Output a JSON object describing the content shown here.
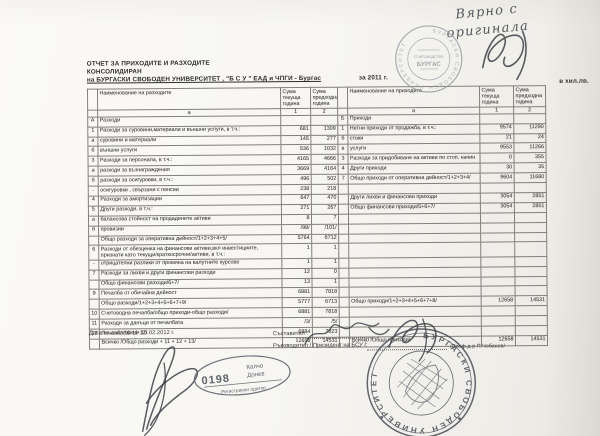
{
  "page": {
    "handwriting_line1": "Вярно с",
    "handwriting_line2": "оригинала",
    "title_line1": "ОТЧЕТ ЗА ПРИХОДИТЕ И РАЗХОДИТЕ",
    "title_line2": "КОНСОЛИДИРАН",
    "title_line3": "на БУРГАСКИ СВОБОДЕН УНИВЕРСИТЕТ , \"Б С У \" ЕАД и ЧПГИ - Бургас",
    "year_label": "за 2011 г.",
    "unit_label": "в хил.лв."
  },
  "table": {
    "header": {
      "left_name": "Наименование на разходите",
      "right_name": "Наименование на приходите",
      "sum_cur": "Сума текуща година",
      "sum_prev": "Сума предходна година",
      "col_a": "а",
      "col_1": "1",
      "col_2": "2"
    },
    "rows": [
      {
        "l": [
          "А",
          "Разходи",
          "",
          ""
        ],
        "r": [
          "Б",
          "Приходи",
          "",
          ""
        ]
      },
      {
        "l": [
          "1",
          "Разходи за суровини,материали и външни услуги, в т.ч.:",
          "681",
          "1309"
        ],
        "r": [
          "1",
          "Нетни приходи от продажба, в т.ч.:",
          "9574",
          "11290"
        ]
      },
      {
        "l": [
          "а",
          "суровини и  материали",
          "145",
          "277"
        ],
        "r": [
          "б",
          "стоки",
          "21",
          "24"
        ]
      },
      {
        "l": [
          "б",
          "външни услуги",
          "536",
          "1032"
        ],
        "r": [
          "в",
          "услуги",
          "9553",
          "11266"
        ]
      },
      {
        "l": [
          "3",
          "Разходи за персонала, в т.ч.:",
          "4165",
          "4666"
        ],
        "r": [
          "3",
          "Разходи за придобиване на активи по стоп. начин",
          "0",
          "355"
        ]
      },
      {
        "l": [
          "а",
          "разходи за възнаграждения",
          "3669",
          "4164"
        ],
        "r": [
          "4",
          "Други приходи",
          "30",
          "35"
        ]
      },
      {
        "l": [
          "б",
          "разходи за осигуровки, в т.ч.:",
          "496",
          "502"
        ],
        "r": [
          "7",
          "Общо приходи от оперативна дейност/1+2+3+4/",
          "9604",
          "11680"
        ]
      },
      {
        "l": [
          "-",
          "осигуровки , свързани с пенсии",
          "238",
          "218"
        ],
        "r": [
          "",
          "",
          "",
          ""
        ]
      },
      {
        "l": [
          "4",
          "Разходи за амортизации",
          "647",
          "470"
        ],
        "r": [
          "",
          "Други лихви и финансови приходи",
          "3054",
          "2851"
        ]
      },
      {
        "l": [
          "5",
          "Други разходи, в т.ч.:",
          "271",
          "267"
        ],
        "r": [
          "",
          "Общо финансови приходи/5+6+7/",
          "3054",
          "2851"
        ]
      },
      {
        "l": [
          "а",
          "балансова стойност на продадените активи",
          "8",
          "7"
        ],
        "r": [
          "",
          "",
          "",
          ""
        ]
      },
      {
        "l": [
          "б",
          "провизии",
          "/98/",
          "/101/"
        ],
        "r": [
          "",
          "",
          "",
          ""
        ]
      },
      {
        "l": [
          "",
          "Общо разходи за оперативна дейност/1+2+3+4+5/",
          "5764",
          "6712"
        ],
        "r": [
          "",
          "",
          "",
          ""
        ]
      },
      {
        "l": [
          "6",
          "Разходи от обезценка на финансови активи,вкл инвестициите, признати като текущи/краткосрочни/активи, в т.ч.:",
          "1",
          "1"
        ],
        "r": [
          "",
          "",
          "",
          ""
        ]
      },
      {
        "l": [
          "-",
          "отрицателни разлики от промяна на валутните курсове",
          "1",
          "1"
        ],
        "r": [
          "",
          "",
          "",
          ""
        ]
      },
      {
        "l": [
          "7",
          "Разходи за лихви и други финансови разходи",
          "12",
          "0"
        ],
        "r": [
          "",
          "",
          "",
          ""
        ]
      },
      {
        "l": [
          "",
          "Общо финансови разходи/6+7/",
          "13",
          "1"
        ],
        "r": [
          "",
          "",
          "",
          ""
        ]
      },
      {
        "l": [
          "9",
          "Печалба от обичайна дейност",
          "6881",
          "7818"
        ],
        "r": [
          "",
          "",
          "",
          ""
        ]
      },
      {
        "l": [
          "",
          "Общо разходи/1+2+3+4+5+6+7+9/",
          "5777",
          "6713"
        ],
        "r": [
          "",
          "Общо приходи/1+2+3+4+5+6+7+8/",
          "12658",
          "14531"
        ]
      },
      {
        "l": [
          "10",
          "Счетоводна печалба/общо приходи-общо разходи/",
          "6881",
          "7818"
        ],
        "r": [
          "",
          "",
          "",
          ""
        ]
      },
      {
        "l": [
          "11",
          "Разходи за данъци от печалбата",
          "/3/",
          "/5/"
        ],
        "r": [
          "",
          "",
          "",
          ""
        ]
      },
      {
        "l": [
          "13",
          "Печалба/10-11-12/",
          "6884",
          "7823"
        ],
        "r": [
          "",
          "",
          "",
          ""
        ]
      },
      {
        "l": [
          "",
          "Всичко /Общо разходи + 11 + 12 + 13/",
          "12658",
          "14531"
        ],
        "r": [
          "",
          "Всичко /Общо приходи/",
          "12658",
          "14531"
        ]
      }
    ]
  },
  "footer": {
    "date_line": "Дата на съставяне 15.02.2012 г.",
    "compiler_label": "Съставител :",
    "manager_label": "Ръководител / Президент на БСУ /:",
    "manager_name": "/Проф.д-р П.Чобанов/"
  },
  "stamps": {
    "top": {
      "ring": "БУРГАСКИ СВОБОДЕН УНИВЕРСИТЕТ",
      "center_line1": "Счетоводство",
      "center_line2": "БУРГАС"
    },
    "auditor": {
      "number": "0198",
      "name_line1": "Калчо",
      "name_line2": "Донев",
      "subtitle": "Регистриран одитор"
    },
    "university": {
      "ring": "БУРГАСКИ СВОБОДЕН УНИВЕРСИТЕТ"
    }
  },
  "colors": {
    "stamp_ink_light": "#9aa0a8",
    "stamp_ink_dark": "#4d525b",
    "paper": "#f7f6f2",
    "ink": "#2e2d2b"
  }
}
